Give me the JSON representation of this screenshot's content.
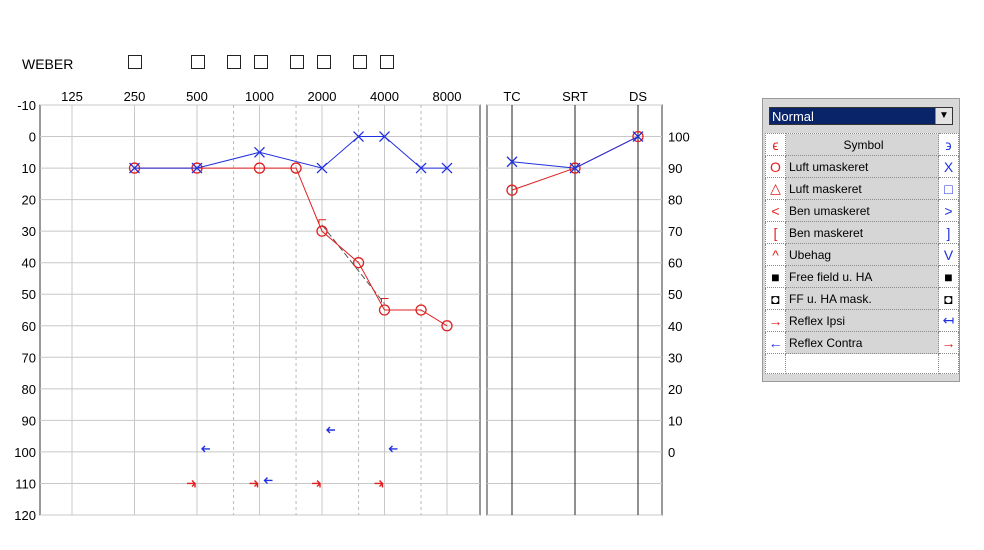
{
  "weber": {
    "label": "WEBER"
  },
  "chart_data": {
    "type": "line",
    "title": "",
    "xlabel": "",
    "ylabel": "",
    "x_scale": "log",
    "x_ticks": [
      "125",
      "250",
      "500",
      "1000",
      "2000",
      "4000",
      "8000"
    ],
    "y_ticks": [
      "-10",
      "0",
      "10",
      "20",
      "30",
      "40",
      "50",
      "60",
      "70",
      "80",
      "90",
      "100",
      "110",
      "120"
    ],
    "ylim": [
      -10,
      120
    ],
    "y_inverted": true,
    "right_axis_ticks": [
      "100",
      "90",
      "80",
      "70",
      "60",
      "50",
      "40",
      "30",
      "20",
      "10",
      "0"
    ],
    "grid": true,
    "series": [
      {
        "symbol": "circle",
        "color": "#e02020",
        "x": [
          250,
          500,
          1000,
          1500,
          2000,
          3000,
          4000,
          6000,
          8000
        ],
        "y": [
          10,
          10,
          10,
          10,
          30,
          40,
          55,
          55,
          60
        ]
      },
      {
        "symbol": "x",
        "color": "#2030e0",
        "x": [
          250,
          500,
          1000,
          2000,
          3000,
          4000,
          6000,
          8000
        ],
        "y": [
          10,
          10,
          5,
          10,
          0,
          0,
          10,
          10
        ]
      }
    ],
    "dashed_line": {
      "x": [
        2000,
        4000
      ],
      "y": [
        28,
        53
      ]
    },
    "bracket_marks": {
      "x": [
        2000,
        4000
      ],
      "y": [
        27,
        52
      ]
    },
    "reflex_ipsi": {
      "color": "#e02020",
      "x": [
        500,
        1000,
        2000,
        4000
      ],
      "y": [
        110,
        110,
        110,
        110
      ]
    },
    "reflex_contra": {
      "color": "#2030e0",
      "x": [
        500,
        1000,
        2000,
        4000
      ],
      "y": [
        100,
        110,
        94,
        100
      ]
    },
    "speech_panel": {
      "x_labels": [
        "TC",
        "SRT",
        "DS"
      ],
      "series": [
        {
          "symbol": "circle",
          "color": "#e02020",
          "y": [
            83,
            90,
            100
          ]
        },
        {
          "symbol": "x",
          "color": "#2030e0",
          "y": [
            92,
            90,
            100
          ]
        }
      ]
    }
  },
  "legend": {
    "select_value": "Normal",
    "symbol_header": "Symbol",
    "rows": [
      {
        "label": "Luft umaskeret",
        "left": "O",
        "right": "X",
        "left_color": "#e02020",
        "right_color": "#2030e0"
      },
      {
        "label": "Luft maskeret",
        "left": "△",
        "right": "□",
        "left_color": "#e02020",
        "right_color": "#2030e0"
      },
      {
        "label": "Ben umaskeret",
        "left": "<",
        "right": ">",
        "left_color": "#e02020",
        "right_color": "#2030e0"
      },
      {
        "label": "Ben maskeret",
        "left": "[",
        "right": "]",
        "left_color": "#e02020",
        "right_color": "#2030e0"
      },
      {
        "label": "Ubehag",
        "left": "^",
        "right": "V",
        "left_color": "#e02020",
        "right_color": "#2030e0"
      },
      {
        "label": "Free field u. HA",
        "left": "■",
        "right": "■",
        "left_color": "#000000",
        "right_color": "#000000"
      },
      {
        "label": "FF u. HA mask.",
        "left": "◘",
        "right": "◘",
        "left_color": "#000000",
        "right_color": "#000000"
      },
      {
        "label": "Reflex Ipsi",
        "left": "→",
        "right": "↤",
        "left_color": "#e02020",
        "right_color": "#2030e0"
      },
      {
        "label": "Reflex Contra",
        "left": "←",
        "right": "→",
        "left_color": "#2030e0",
        "right_color": "#e02020"
      }
    ]
  }
}
